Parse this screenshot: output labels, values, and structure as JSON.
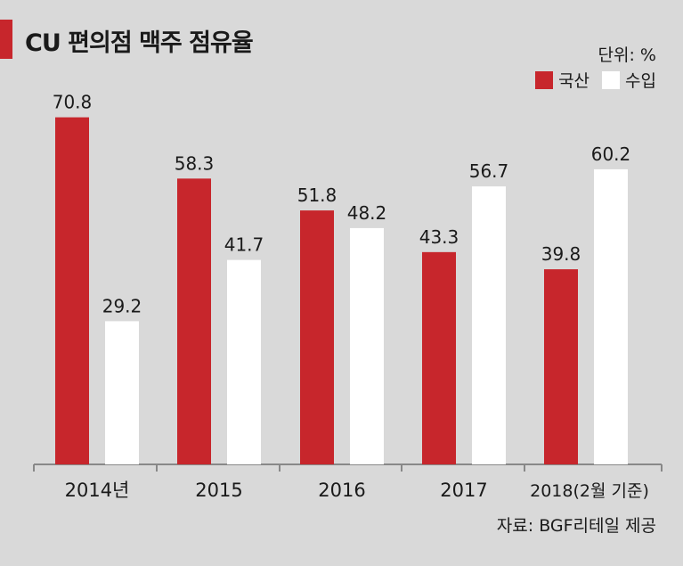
{
  "chart_data": {
    "type": "bar",
    "title": "CU 편의점 맥주 점유율",
    "unit_label": "단위: %",
    "categories": [
      "2014년",
      "2015",
      "2016",
      "2017",
      "2018(2월 기준)"
    ],
    "series": [
      {
        "name": "국산",
        "color": "#c7262c",
        "values": [
          70.8,
          58.3,
          51.8,
          43.3,
          39.8
        ]
      },
      {
        "name": "수입",
        "color": "#ffffff",
        "values": [
          29.2,
          41.7,
          48.2,
          56.7,
          60.2
        ]
      }
    ],
    "ylim": [
      0,
      80
    ],
    "grid": false,
    "legend_position": "top-right",
    "source": "자료: BGF리테일 제공"
  },
  "colors": {
    "background": "#d9d9d9",
    "accent": "#c7262c",
    "domestic": "#c7262c",
    "imported": "#ffffff",
    "axis": "#888888"
  }
}
